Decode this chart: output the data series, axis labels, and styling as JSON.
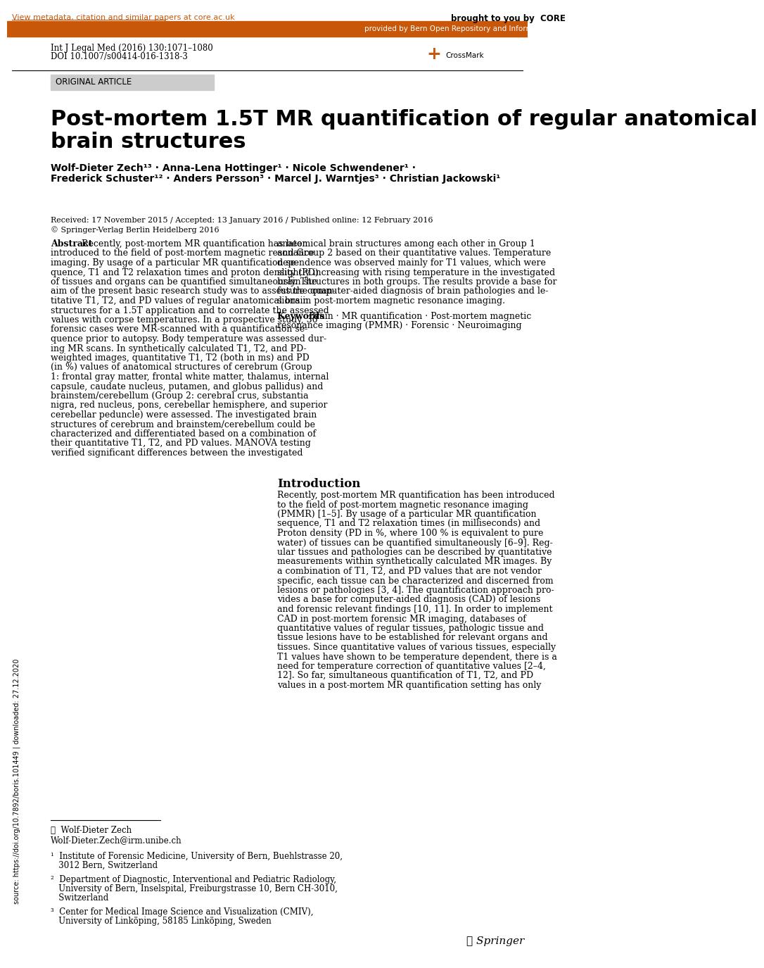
{
  "bg_color": "#ffffff",
  "top_bar_color": "#c8570a",
  "top_bar_text": "provided by Bern Open Repository and Information System (BORIS)",
  "top_link_text": "View metadata, citation and similar papers at core.ac.uk",
  "top_link_color": "#c8570a",
  "core_text": "brought to you by  CORE",
  "journal_line1": "Int J Legal Med (2016) 130:1071–1080",
  "journal_line2": "DOI 10.1007/s00414-016-1318-3",
  "original_article_label": "ORIGINAL ARTICLE",
  "original_article_bg": "#cccccc",
  "title_line1": "Post-mortem 1.5T MR quantification of regular anatomical",
  "title_line2": "brain structures",
  "authors_line1": "Wolf-Dieter Zech¹³ · Anna-Lena Hottinger¹ · Nicole Schwendener¹ ·",
  "authors_line2": "Frederick Schuster¹² · Anders Persson³ · Marcel J. Warntjes³ · Christian Jackowski¹",
  "received_text": "Received: 17 November 2015 / Accepted: 13 January 2016 / Published online: 12 February 2016",
  "copyright_text": "© Springer-Verlag Berlin Heidelberg 2016",
  "abstract_title": "Abstract",
  "abstract_left": "Recently, post-mortem MR quantification has been introduced to the field of post-mortem magnetic resonance imaging. By usage of a particular MR quantification sequence, T1 and T2 relaxation times and proton density (PD) of tissues and organs can be quantified simultaneously. The aim of the present basic research study was to assess the quantitative T1, T2, and PD values of regular anatomical brain structures for a 1.5T application and to correlate the assessed values with corpse temperatures. In a prospective study, 30 forensic cases were MR-scanned with a quantification sequence prior to autopsy. Body temperature was assessed during MR scans. In synthetically calculated T1, T2, and PD-weighted images, quantitative T1, T2 (both in ms) and PD (in %) values of anatomical structures of cerebrum (Group 1: frontal gray matter, frontal white matter, thalamus, internal capsule, caudate nucleus, putamen, and globus pallidus) and brainstem/cerebellum (Group 2: cerebral crus, substantia nigra, red nucleus, pons, cerebellar hemisphere, and superior cerebellar peduncle) were assessed. The investigated brain structures of cerebrum and brainstem/cerebellum could be characterized and differentiated based on a combination of their quantitative T1, T2, and PD values. MANOVA testing verified significant differences between the investigated",
  "abstract_right": "anatomical brain structures among each other in Group 1 and Group 2 based on their quantitative values. Temperature dependence was observed mainly for T1 values, which were slightly increasing with rising temperature in the investigated brain structures in both groups. The results provide a base for future computer-aided diagnosis of brain pathologies and lesions in post-mortem magnetic resonance imaging.",
  "keywords_title": "Keywords",
  "keywords_text": "Brain · MR quantification · Post-mortem magnetic resonance imaging (PMMR) · Forensic · Neuroimaging",
  "intro_title": "Introduction",
  "intro_text": "Recently, post-mortem MR quantification has been introduced to the field of post-mortem magnetic resonance imaging (PMMR) [1–5]. By usage of a particular MR quantification sequence, T1 and T2 relaxation times (in milliseconds) and Proton density (PD in %, where 100 % is equivalent to pure water) of tissues can be quantified simultaneously [6–9]. Regular tissues and pathologies can be described by quantitative measurements within synthetically calculated MR images. By a combination of T1, T2, and PD values that are not vendor specific, each tissue can be characterized and discerned from lesions or pathologies [3, 4]. The quantification approach provides a base for computer-aided diagnosis (CAD) of lesions and forensic relevant findings [10, 11]. In order to implement CAD in post-mortem forensic MR imaging, databases of quantitative values of regular tissues, pathologic tissue and tissue lesions have to be established for relevant organs and tissues. Since quantitative values of various tissues, especially T1 values have shown to be temperature dependent, there is a need for temperature correction of quantitative values [2–4, 12]. So far, simultaneous quantification of T1, T2, and PD values in a post-mortem MR quantification setting has only",
  "footnote_email_label": "✉  Wolf-Dieter Zech",
  "footnote_email": "Wolf-Dieter.Zech@irm.unibe.ch",
  "footnote1": "¹  Institute of Forensic Medicine, University of Bern, Buehlstrasse 20, 3012 Bern, Switzerland",
  "footnote2": "²  Department of Diagnostic, Interventional and Pediatric Radiology, University of Bern, Inselspital, Freiburgstrasse 10, Bern CH-3010, Switzerland",
  "footnote3": "³  Center for Medical Image Science and Visualization (CMIV), University of Linköping, 58185 Linköping, Sweden",
  "springer_text": "ℒ Springer",
  "sidebar_text": "source: https://doi.org/10.7892/boris.101449 | downloaded: 27.12.2020",
  "text_color": "#000000",
  "body_text_color": "#333333"
}
